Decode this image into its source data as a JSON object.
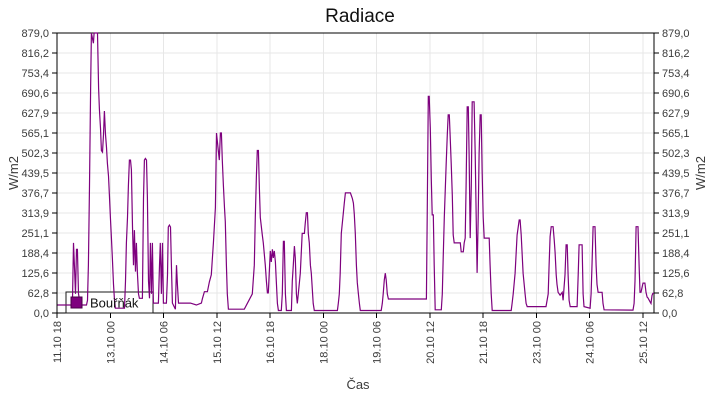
{
  "title": "Radiace",
  "legend": {
    "label": "Bouřňák",
    "position": "bottom-left"
  },
  "axis": {
    "x_label": "Čas",
    "y_label_left": "W/m2",
    "y_label_right": "W/m2"
  },
  "colors": {
    "line": "#7e017e",
    "legend_marker_fill": "#7e017e",
    "legend_marker_border": "#4a0148",
    "grid": "#e7e7e7",
    "frame": "#000000",
    "tick_text": "#3b3b3b",
    "background": "#ffffff"
  },
  "chart_data": {
    "type": "line",
    "title": "Radiace",
    "xlabel": "Čas",
    "ylabel": "W/m2",
    "grid": true,
    "legend_position": "bottom-left",
    "series_name": "Bouřňák",
    "line_color": "#7e017e",
    "ylim": [
      0,
      879
    ],
    "y_ticks": [
      {
        "value": 0,
        "label": "0,0"
      },
      {
        "value": 62.8,
        "label": "62,8"
      },
      {
        "value": 125.6,
        "label": "125,6"
      },
      {
        "value": 188.4,
        "label": "188,4"
      },
      {
        "value": 251.1,
        "label": "251,1"
      },
      {
        "value": 313.9,
        "label": "313,9"
      },
      {
        "value": 376.7,
        "label": "376,7"
      },
      {
        "value": 439.5,
        "label": "439,5"
      },
      {
        "value": 502.3,
        "label": "502,3"
      },
      {
        "value": 565.1,
        "label": "565,1"
      },
      {
        "value": 627.9,
        "label": "627,9"
      },
      {
        "value": 690.6,
        "label": "690,6"
      },
      {
        "value": 753.4,
        "label": "753,4"
      },
      {
        "value": 816.2,
        "label": "816,2"
      },
      {
        "value": 879.0,
        "label": "879,0"
      }
    ],
    "x_range_hours": [
      0,
      336.2
    ],
    "x_ticks": [
      {
        "hours": 0,
        "label": "11.10 18"
      },
      {
        "hours": 30,
        "label": "13.10 00"
      },
      {
        "hours": 60,
        "label": "14.10 06"
      },
      {
        "hours": 90,
        "label": "15.10 12"
      },
      {
        "hours": 120,
        "label": "16.10 18"
      },
      {
        "hours": 150,
        "label": "18.10 00"
      },
      {
        "hours": 180,
        "label": "19.10 06"
      },
      {
        "hours": 210,
        "label": "20.10 12"
      },
      {
        "hours": 240,
        "label": "21.10 18"
      },
      {
        "hours": 270,
        "label": "23.10 00"
      },
      {
        "hours": 300,
        "label": "24.10 06"
      },
      {
        "hours": 330,
        "label": "25.10 12"
      }
    ],
    "points": [
      [
        0.3,
        25
      ],
      [
        8.7,
        25
      ],
      [
        9.3,
        220
      ],
      [
        9.8,
        150
      ],
      [
        10.4,
        60
      ],
      [
        11,
        200
      ],
      [
        11.5,
        200
      ],
      [
        12.1,
        60
      ],
      [
        13.2,
        25
      ],
      [
        16.6,
        25
      ],
      [
        17.2,
        40
      ],
      [
        17.7,
        150
      ],
      [
        18.3,
        400
      ],
      [
        18.9,
        700
      ],
      [
        19.4,
        879
      ],
      [
        20.5,
        847
      ],
      [
        20.9,
        879
      ],
      [
        22.8,
        879
      ],
      [
        23.4,
        705
      ],
      [
        23.9,
        640
      ],
      [
        24.5,
        580
      ],
      [
        25,
        510
      ],
      [
        25.6,
        505
      ],
      [
        26.2,
        560
      ],
      [
        26.7,
        634
      ],
      [
        27.3,
        560
      ],
      [
        27.9,
        520
      ],
      [
        28.4,
        470
      ],
      [
        29,
        430
      ],
      [
        29.5,
        370
      ],
      [
        30.1,
        300
      ],
      [
        30.7,
        230
      ],
      [
        31.2,
        170
      ],
      [
        31.8,
        90
      ],
      [
        32.4,
        40
      ],
      [
        32.9,
        15
      ],
      [
        38,
        15
      ],
      [
        38.6,
        100
      ],
      [
        39.1,
        220
      ],
      [
        39.7,
        300
      ],
      [
        40.2,
        400
      ],
      [
        40.8,
        480
      ],
      [
        41.4,
        480
      ],
      [
        41.9,
        450
      ],
      [
        42.5,
        270
      ],
      [
        43.1,
        150
      ],
      [
        43.6,
        260
      ],
      [
        44.2,
        130
      ],
      [
        44.7,
        220
      ],
      [
        45.3,
        126
      ],
      [
        45.9,
        60
      ],
      [
        46.4,
        46
      ],
      [
        48.1,
        46
      ],
      [
        48.7,
        360
      ],
      [
        49.2,
        480
      ],
      [
        49.8,
        485
      ],
      [
        50.4,
        480
      ],
      [
        50.9,
        363
      ],
      [
        51.5,
        100
      ],
      [
        52.1,
        46
      ],
      [
        52.6,
        220
      ],
      [
        53.2,
        60
      ],
      [
        53.7,
        220
      ],
      [
        54.3,
        31
      ],
      [
        57.1,
        31
      ],
      [
        57.7,
        150
      ],
      [
        58.2,
        220
      ],
      [
        58.8,
        60
      ],
      [
        59.4,
        220
      ],
      [
        59.9,
        31
      ],
      [
        61.6,
        31
      ],
      [
        62.2,
        120
      ],
      [
        62.7,
        270
      ],
      [
        63.3,
        276
      ],
      [
        63.9,
        270
      ],
      [
        64.4,
        150
      ],
      [
        65,
        31
      ],
      [
        66.7,
        12
      ],
      [
        67.3,
        150
      ],
      [
        67.8,
        90
      ],
      [
        68.4,
        31
      ],
      [
        75.1,
        31
      ],
      [
        78.5,
        25
      ],
      [
        81.3,
        31
      ],
      [
        81.9,
        45
      ],
      [
        83,
        67
      ],
      [
        84.7,
        67
      ],
      [
        85.8,
        98
      ],
      [
        86.9,
        120
      ],
      [
        88.1,
        220
      ],
      [
        89.2,
        331
      ],
      [
        89.8,
        565
      ],
      [
        91.4,
        480
      ],
      [
        92,
        565
      ],
      [
        92.6,
        565
      ],
      [
        93.1,
        480
      ],
      [
        93.7,
        400
      ],
      [
        94.3,
        330
      ],
      [
        94.8,
        287
      ],
      [
        95.4,
        150
      ],
      [
        95.9,
        60
      ],
      [
        96.5,
        12
      ],
      [
        105.5,
        12
      ],
      [
        110,
        60
      ],
      [
        111.1,
        150
      ],
      [
        111.7,
        300
      ],
      [
        112.3,
        430
      ],
      [
        112.8,
        510
      ],
      [
        113.4,
        510
      ],
      [
        114,
        390
      ],
      [
        114.5,
        300
      ],
      [
        115.6,
        245
      ],
      [
        116.2,
        220
      ],
      [
        117.3,
        150
      ],
      [
        117.9,
        100
      ],
      [
        118.5,
        63
      ],
      [
        119,
        63
      ],
      [
        120.1,
        195
      ],
      [
        120.7,
        160
      ],
      [
        121.3,
        200
      ],
      [
        121.8,
        173
      ],
      [
        122.4,
        195
      ],
      [
        123,
        160
      ],
      [
        123.5,
        100
      ],
      [
        124.1,
        30
      ],
      [
        124.7,
        8
      ],
      [
        126.3,
        8
      ],
      [
        126.9,
        60
      ],
      [
        127.5,
        225
      ],
      [
        128,
        225
      ],
      [
        128.6,
        60
      ],
      [
        129.2,
        8
      ],
      [
        132,
        8
      ],
      [
        132.5,
        100
      ],
      [
        133.1,
        150
      ],
      [
        133.7,
        210
      ],
      [
        134.2,
        173
      ],
      [
        134.8,
        60
      ],
      [
        135.3,
        30
      ],
      [
        135.9,
        60
      ],
      [
        137,
        125
      ],
      [
        138.1,
        250
      ],
      [
        139.3,
        250
      ],
      [
        139.8,
        280
      ],
      [
        140.4,
        315
      ],
      [
        141,
        315
      ],
      [
        141.5,
        250
      ],
      [
        142.1,
        220
      ],
      [
        142.7,
        150
      ],
      [
        143.2,
        125
      ],
      [
        144.3,
        30
      ],
      [
        144.9,
        8
      ],
      [
        157.9,
        8
      ],
      [
        158.4,
        30
      ],
      [
        159,
        60
      ],
      [
        159.5,
        125
      ],
      [
        160.1,
        250
      ],
      [
        161.2,
        310
      ],
      [
        161.8,
        345
      ],
      [
        162.4,
        377
      ],
      [
        165.2,
        377
      ],
      [
        166.3,
        360
      ],
      [
        166.9,
        345
      ],
      [
        167.4,
        310
      ],
      [
        168,
        250
      ],
      [
        168.6,
        150
      ],
      [
        169.1,
        95
      ],
      [
        169.7,
        63
      ],
      [
        170.3,
        30
      ],
      [
        170.8,
        8
      ],
      [
        182.6,
        8
      ],
      [
        183.2,
        30
      ],
      [
        183.7,
        60
      ],
      [
        184.3,
        104
      ],
      [
        184.9,
        125
      ],
      [
        185.4,
        104
      ],
      [
        186,
        60
      ],
      [
        186.6,
        44
      ],
      [
        208,
        44
      ],
      [
        208.5,
        300
      ],
      [
        209.1,
        680
      ],
      [
        209.6,
        680
      ],
      [
        210.2,
        581
      ],
      [
        210.8,
        420
      ],
      [
        211.3,
        308
      ],
      [
        211.9,
        308
      ],
      [
        212.4,
        150
      ],
      [
        213,
        10
      ],
      [
        216.4,
        10
      ],
      [
        217,
        60
      ],
      [
        217.5,
        173
      ],
      [
        218.1,
        300
      ],
      [
        219.2,
        470
      ],
      [
        219.8,
        560
      ],
      [
        220.3,
        622
      ],
      [
        220.9,
        622
      ],
      [
        221.4,
        560
      ],
      [
        222,
        470
      ],
      [
        222.6,
        370
      ],
      [
        223.1,
        245
      ],
      [
        223.7,
        220
      ],
      [
        227.1,
        220
      ],
      [
        227.6,
        192
      ],
      [
        228.8,
        192
      ],
      [
        229.3,
        220
      ],
      [
        229.9,
        235
      ],
      [
        230.4,
        400
      ],
      [
        231,
        647
      ],
      [
        231.6,
        647
      ],
      [
        232.1,
        500
      ],
      [
        232.7,
        235
      ],
      [
        233.3,
        400
      ],
      [
        233.8,
        663
      ],
      [
        234.9,
        663
      ],
      [
        235.5,
        500
      ],
      [
        236.1,
        300
      ],
      [
        236.6,
        126
      ],
      [
        237.2,
        300
      ],
      [
        237.7,
        500
      ],
      [
        238.3,
        622
      ],
      [
        238.9,
        622
      ],
      [
        239.4,
        450
      ],
      [
        240,
        300
      ],
      [
        240.6,
        235
      ],
      [
        243.4,
        235
      ],
      [
        243.9,
        150
      ],
      [
        244.5,
        60
      ],
      [
        245.1,
        8
      ],
      [
        255.8,
        8
      ],
      [
        256.3,
        30
      ],
      [
        256.9,
        60
      ],
      [
        258,
        125
      ],
      [
        259.1,
        245
      ],
      [
        260.3,
        292
      ],
      [
        260.8,
        292
      ],
      [
        261.4,
        245
      ],
      [
        262.5,
        125
      ],
      [
        263.6,
        60
      ],
      [
        264.2,
        30
      ],
      [
        264.8,
        20
      ],
      [
        275.4,
        20
      ],
      [
        276.6,
        60
      ],
      [
        277.1,
        150
      ],
      [
        277.7,
        240
      ],
      [
        278.3,
        271
      ],
      [
        279.4,
        271
      ],
      [
        280,
        230
      ],
      [
        280.5,
        190
      ],
      [
        281.1,
        120
      ],
      [
        281.6,
        90
      ],
      [
        282.2,
        65
      ],
      [
        283.3,
        56
      ],
      [
        284.5,
        65
      ],
      [
        285,
        40
      ],
      [
        286.1,
        120
      ],
      [
        286.7,
        214
      ],
      [
        287.3,
        214
      ],
      [
        287.8,
        120
      ],
      [
        288.4,
        40
      ],
      [
        289,
        20
      ],
      [
        292.9,
        20
      ],
      [
        293.5,
        120
      ],
      [
        294,
        214
      ],
      [
        295.7,
        214
      ],
      [
        296.3,
        60
      ],
      [
        296.8,
        20
      ],
      [
        300.2,
        15
      ],
      [
        300.8,
        60
      ],
      [
        301.3,
        150
      ],
      [
        301.9,
        271
      ],
      [
        303,
        271
      ],
      [
        303.6,
        150
      ],
      [
        304.1,
        90
      ],
      [
        304.7,
        65
      ],
      [
        307,
        65
      ],
      [
        307.5,
        30
      ],
      [
        308.1,
        10
      ],
      [
        324.4,
        9
      ],
      [
        325,
        30
      ],
      [
        325.5,
        100
      ],
      [
        326.1,
        271
      ],
      [
        327.2,
        271
      ],
      [
        327.8,
        150
      ],
      [
        328.3,
        65
      ],
      [
        328.9,
        65
      ],
      [
        330,
        94
      ],
      [
        331.1,
        94
      ],
      [
        331.7,
        65
      ],
      [
        332.3,
        50
      ],
      [
        332.8,
        47
      ],
      [
        334,
        35
      ],
      [
        334.5,
        30
      ],
      [
        335.1,
        55
      ],
      [
        335.6,
        62
      ],
      [
        336.2,
        62
      ]
    ]
  }
}
